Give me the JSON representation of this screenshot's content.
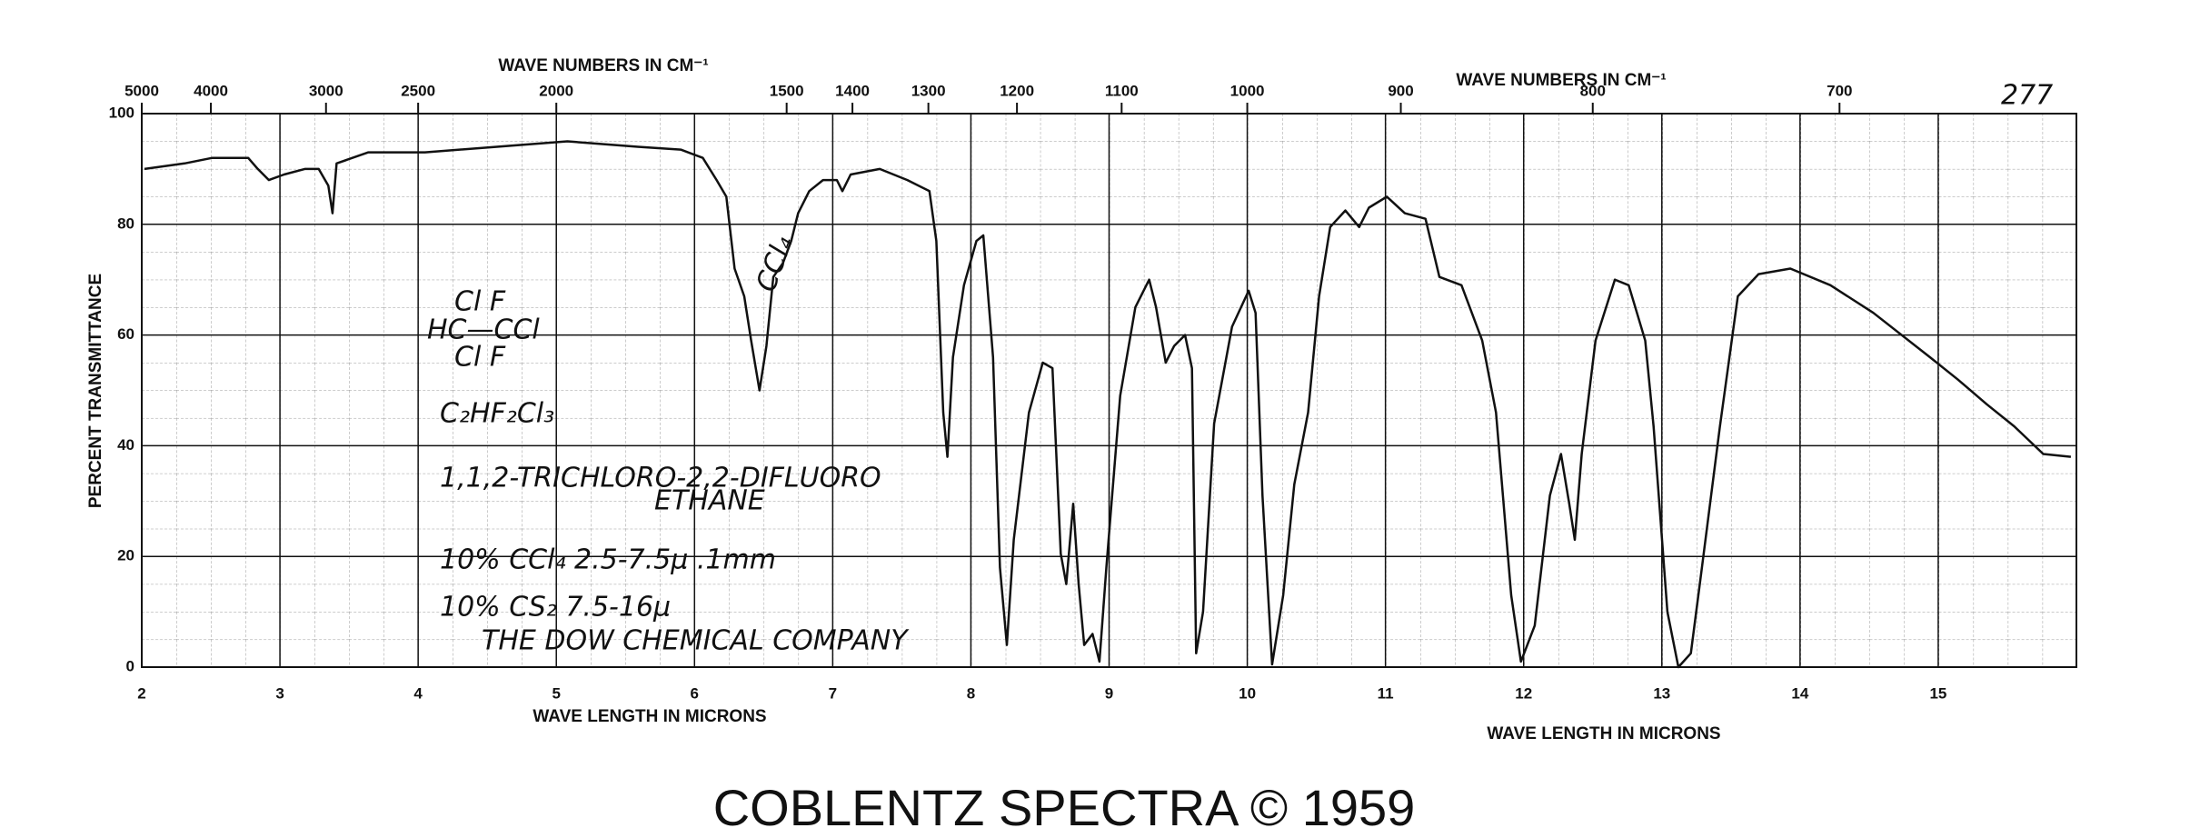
{
  "chart_data": {
    "type": "line",
    "x2label": "WAVE NUMBERS IN CM⁻¹",
    "xlabel": "WAVE LENGTH IN MICRONS",
    "ylabel": "PERCENT TRANSMITTANCE",
    "caption": "COBLENTZ SPECTRA © 1959",
    "annotations": [
      "277",
      "Cl  F",
      "HC—CCl",
      "Cl  F",
      "C₂HF₂Cl₃",
      "1,1,2-TRICHLORO-2,2-DIFLUORO",
      "ETHANE",
      "10% CCl₄  2.5-7.5μ   .1mm",
      "10% CS₂  7.5-16μ",
      "THE DOW CHEMICAL COMPANY",
      "CCl₄"
    ],
    "color": "#111111",
    "grid": true,
    "xlim": [
      2,
      16
    ],
    "xticks": [
      2,
      3,
      4,
      5,
      6,
      7,
      8,
      9,
      10,
      11,
      12,
      13,
      14,
      15
    ],
    "x2ticks": [
      5000,
      4000,
      3000,
      2500,
      2000,
      1500,
      1400,
      1300,
      1200,
      1100,
      1000,
      900,
      800,
      700
    ],
    "ylim": [
      0,
      100
    ],
    "yticks": [
      0,
      20,
      40,
      60,
      80,
      100
    ],
    "x": [
      2.02,
      2.31,
      2.51,
      2.77,
      2.84,
      2.92,
      3.03,
      3.18,
      3.28,
      3.35,
      3.38,
      3.41,
      3.64,
      4.05,
      4.57,
      5.08,
      5.59,
      5.9,
      6.06,
      6.16,
      6.23,
      6.29,
      6.36,
      6.41,
      6.47,
      6.52,
      6.57,
      6.64,
      6.7,
      6.75,
      6.83,
      6.93,
      7.03,
      7.07,
      7.13,
      7.34,
      7.54,
      7.7,
      7.75,
      7.8,
      7.83,
      7.87,
      7.95,
      8.04,
      8.09,
      8.16,
      8.21,
      8.26,
      8.31,
      8.42,
      8.52,
      8.59,
      8.65,
      8.69,
      8.74,
      8.78,
      8.82,
      8.88,
      8.93,
      8.98,
      9.08,
      9.19,
      9.29,
      9.34,
      9.41,
      9.47,
      9.55,
      9.6,
      9.63,
      9.68,
      9.76,
      9.89,
      10.01,
      10.06,
      10.11,
      10.18,
      10.26,
      10.34,
      10.44,
      10.52,
      10.6,
      10.71,
      10.81,
      10.88,
      11.01,
      11.14,
      11.29,
      11.39,
      11.55,
      11.7,
      11.8,
      11.91,
      11.98,
      12.08,
      12.19,
      12.27,
      12.33,
      12.37,
      12.42,
      12.52,
      12.66,
      12.76,
      12.88,
      12.94,
      13.04,
      13.12,
      13.21,
      13.29,
      13.42,
      13.55,
      13.7,
      13.93,
      14.22,
      14.53,
      14.94,
      15.14,
      15.35,
      15.55,
      15.76,
      15.96
    ],
    "values": [
      90,
      91,
      92,
      92,
      90,
      88,
      89,
      90,
      90,
      87,
      82,
      91,
      93,
      93,
      94,
      95,
      94,
      93.5,
      92,
      88,
      85,
      72,
      67,
      59,
      50,
      58,
      70.5,
      73,
      77,
      82,
      86,
      88,
      88,
      86,
      89,
      90,
      88,
      86,
      77,
      46,
      38,
      56,
      69,
      77,
      78,
      56,
      18,
      4,
      23,
      46,
      55,
      54,
      20.5,
      15,
      29.5,
      15,
      4,
      6,
      1,
      18,
      49,
      65,
      70,
      65,
      55,
      58,
      60,
      54,
      2.5,
      10,
      44,
      61.5,
      68,
      64,
      31,
      0.5,
      13,
      33,
      46,
      67,
      79.5,
      82.5,
      79.5,
      83,
      85,
      82,
      81,
      70.5,
      69,
      59,
      46,
      13,
      1,
      7.5,
      31,
      38.5,
      29.5,
      23,
      38.5,
      59,
      70,
      69,
      59,
      43.5,
      10,
      0,
      2.5,
      18,
      43.5,
      67,
      71,
      72,
      69,
      64,
      56,
      52,
      47.5,
      43.5,
      38.5,
      38
    ]
  }
}
